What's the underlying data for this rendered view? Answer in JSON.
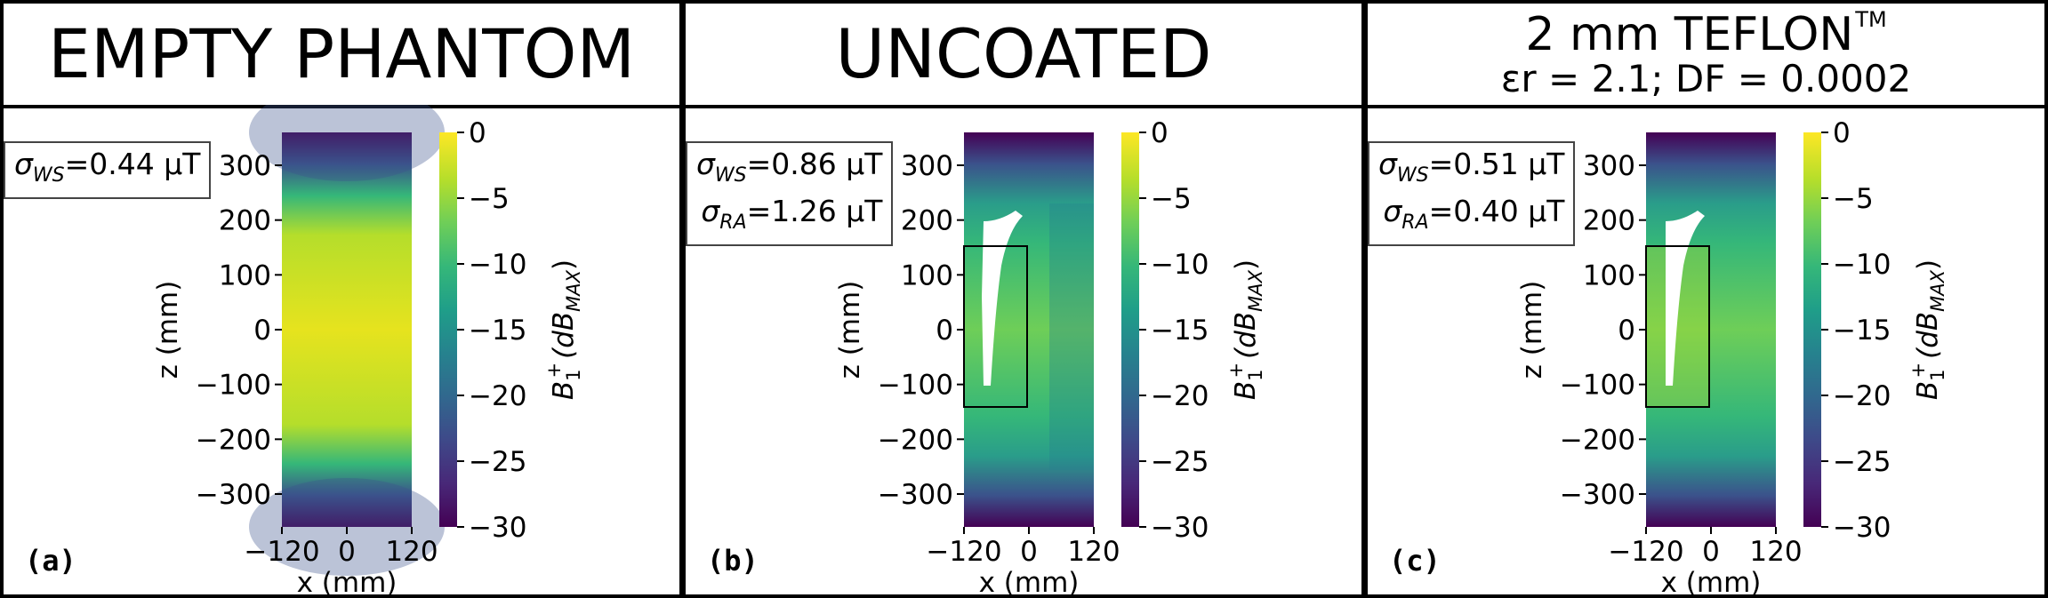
{
  "panels": [
    {
      "id": "a",
      "title": "EMPTY PHANTOM",
      "sigma_ws": {
        "symbol": "σ",
        "sub": "WS",
        "value": "=0.44 μT"
      },
      "letter": "(a)",
      "has_insert": false
    },
    {
      "id": "b",
      "title": "UNCOATED",
      "sigma_ws": {
        "symbol": "σ",
        "sub": "WS",
        "value": "=0.86 μT"
      },
      "sigma_ra": {
        "symbol": "σ",
        "sub": "RA",
        "value": "=1.26 μT"
      },
      "letter": "(b)",
      "has_insert": true
    },
    {
      "id": "c",
      "title_line1": "2 mm TEFLON",
      "title_tm": "TM",
      "title_line2": "εr = 2.1; DF = 0.0002",
      "sigma_ws": {
        "symbol": "σ",
        "sub": "WS",
        "value": "=0.51 μT"
      },
      "sigma_ra": {
        "symbol": "σ",
        "sub": "RA",
        "value": "=0.40 μT"
      },
      "letter": "(c)",
      "has_insert": true
    }
  ],
  "axes": {
    "xlabel": "x (mm)",
    "ylabel": "z (mm)",
    "xticks": [
      "−120",
      "0",
      "120"
    ],
    "yticks": [
      "300",
      "200",
      "100",
      "0",
      "−100",
      "−200",
      "−300"
    ]
  },
  "colorbar": {
    "label_main": "B",
    "label_sub": "1",
    "label_sup": "+",
    "label_rest": "(dB",
    "label_max": "MAX",
    "label_close": ")",
    "ticks": [
      "0",
      "−5",
      "−10",
      "−15",
      "−20",
      "−25",
      "−30"
    ],
    "range": [
      -30,
      0
    ],
    "colormap": "viridis",
    "colors": [
      "#440154",
      "#482878",
      "#3e4989",
      "#31688e",
      "#26828e",
      "#1f9e89",
      "#35b779",
      "#6ece58",
      "#b5de2b",
      "#fde725"
    ]
  }
}
